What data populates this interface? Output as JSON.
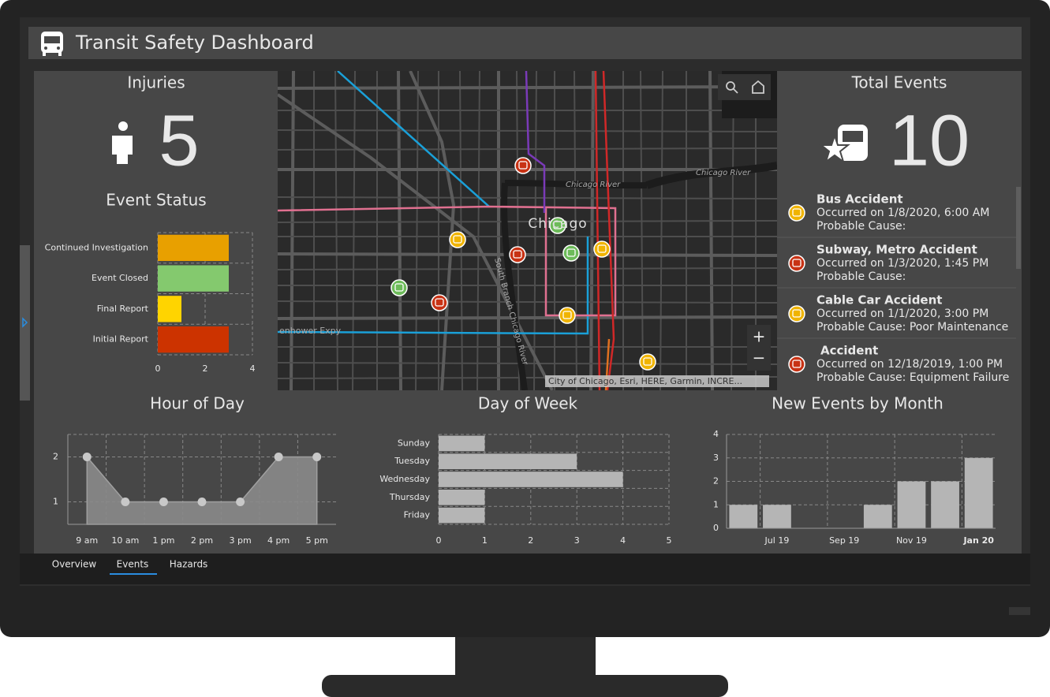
{
  "header": {
    "title": "Transit Safety Dashboard"
  },
  "injuries": {
    "title": "Injuries",
    "value": 5
  },
  "total_events": {
    "title": "Total Events",
    "value": 10
  },
  "map": {
    "labels": [
      "Chicago",
      "Chicago River",
      "Chicago River",
      "South Branch Chicago River",
      "enhower Expy"
    ],
    "attribution": "City of Chicago, Esri, HERE, Garmin, INCRE...",
    "zoom_in": "+",
    "zoom_out": "−"
  },
  "events": [
    {
      "title": "Bus Accident",
      "occurred": "Occurred on 1/8/2020, 6:00 AM",
      "cause": "Probable Cause:"
    },
    {
      "title": "Subway, Metro Accident",
      "occurred": "Occurred on 1/3/2020, 1:45 PM",
      "cause": "Probable Cause:"
    },
    {
      "title": "Cable Car Accident",
      "occurred": "Occurred on 1/1/2020, 3:00 PM",
      "cause": "Probable Cause: Poor Maintenance"
    },
    {
      "title": "Accident",
      "occurred": "Occurred on 12/18/2019, 1:00 PM",
      "cause": "Probable Cause: Equipment Failure"
    }
  ],
  "tabs": [
    "Overview",
    "Events",
    "Hazards"
  ],
  "chart_data": [
    {
      "type": "barh",
      "title": "Event Status",
      "categories": [
        "Continued Investigation",
        "Event Closed",
        "Final Report",
        "Initial Report"
      ],
      "values": [
        3,
        3,
        1,
        3
      ],
      "colors": [
        "#e8a000",
        "#84c96e",
        "#ffd400",
        "#cc3300"
      ],
      "xlim": [
        0,
        4
      ],
      "xticks": [
        0,
        2,
        4
      ],
      "grid": true
    },
    {
      "type": "area",
      "title": "Hour of Day",
      "categories": [
        "9 am",
        "10 am",
        "1 pm",
        "2 pm",
        "3 pm",
        "4 pm",
        "5 pm"
      ],
      "values": [
        2,
        1,
        1,
        1,
        1,
        2,
        2
      ],
      "color": "#8a8a8a",
      "ylim": [
        0.5,
        2.5
      ],
      "yticks": [
        1,
        2
      ],
      "grid": true
    },
    {
      "type": "barh",
      "title": "Day of Week",
      "categories": [
        "Sunday",
        "Tuesday",
        "Wednesday",
        "Thursday",
        "Friday"
      ],
      "values": [
        1,
        3,
        4,
        1,
        1
      ],
      "color": "#b5b5b5",
      "xlim": [
        0,
        5
      ],
      "xticks": [
        0,
        1,
        2,
        3,
        4,
        5
      ],
      "grid": true
    },
    {
      "type": "bar",
      "title": "New Events by Month",
      "categories": [
        null,
        "Jul 19",
        null,
        "Sep 19",
        null,
        "Nov 19",
        null,
        "Jan 20"
      ],
      "values": [
        1,
        1,
        0,
        0,
        1,
        2,
        2,
        3
      ],
      "color": "#b5b5b5",
      "ylim": [
        0,
        4
      ],
      "yticks": [
        0,
        1,
        2,
        3,
        4
      ],
      "grid": true
    }
  ]
}
